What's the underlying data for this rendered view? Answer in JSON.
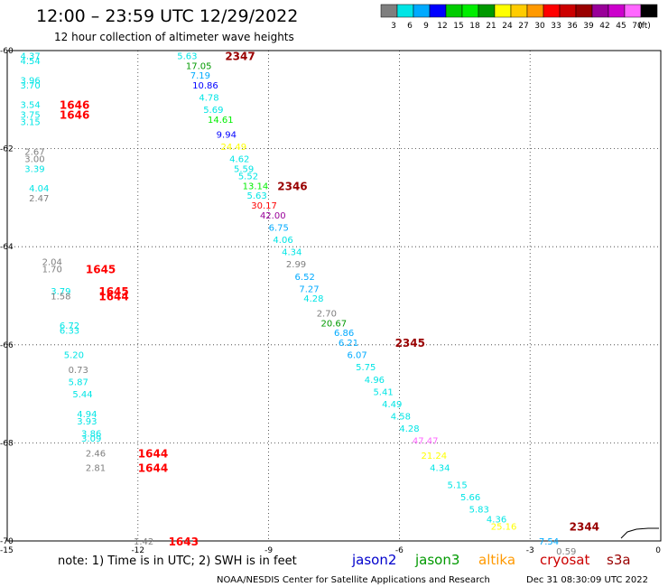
{
  "header": {
    "title": "12:00 – 23:59 UTC 12/29/2022",
    "subtitle": "12 hour collection of altimeter wave heights"
  },
  "colorbar": {
    "colors": [
      "#7f7f7f",
      "#00e5e5",
      "#00aaff",
      "#0000ff",
      "#00cc00",
      "#00ee00",
      "#009900",
      "#ffff00",
      "#ffcc00",
      "#ff9900",
      "#ff0000",
      "#cc0000",
      "#990000",
      "#990099",
      "#cc00cc",
      "#ff66ff",
      "#000000"
    ],
    "labels": [
      "3",
      "6",
      "9",
      "12",
      "15",
      "18",
      "21",
      "24",
      "27",
      "30",
      "33",
      "36",
      "39",
      "42",
      "45",
      "70",
      "(ft)"
    ]
  },
  "chart_data": {
    "type": "scatter",
    "title": "12:00 – 23:59 UTC 12/29/2022",
    "subtitle": "12 hour collection of altimeter wave heights",
    "xlim": [
      -15,
      0
    ],
    "ylim": [
      -70,
      -60
    ],
    "x_ticks": [
      "-15",
      "-12",
      "-9",
      "-6",
      "-3",
      "0"
    ],
    "y_ticks": [
      "-60",
      "-62",
      "-64",
      "-66",
      "-68",
      "-70"
    ],
    "grid": true,
    "points": [
      {
        "x": -14.7,
        "y": -60.1,
        "label": "4.37",
        "color": "#00e5e5"
      },
      {
        "x": -14.7,
        "y": -60.2,
        "label": "4.54",
        "color": "#00e5e5"
      },
      {
        "x": -14.7,
        "y": -60.6,
        "label": "3.96",
        "color": "#00e5e5"
      },
      {
        "x": -14.7,
        "y": -60.7,
        "label": "3.70",
        "color": "#00e5e5"
      },
      {
        "x": -14.7,
        "y": -61.1,
        "label": "3.54",
        "color": "#00e5e5"
      },
      {
        "x": -14.7,
        "y": -61.3,
        "label": "3.75",
        "color": "#00e5e5"
      },
      {
        "x": -14.7,
        "y": -61.45,
        "label": "3.15",
        "color": "#00e5e5"
      },
      {
        "x": -14.6,
        "y": -62.05,
        "label": "2.67",
        "color": "#7f7f7f"
      },
      {
        "x": -14.6,
        "y": -62.2,
        "label": "3.00",
        "color": "#7f7f7f"
      },
      {
        "x": -14.6,
        "y": -62.4,
        "label": "3.39",
        "color": "#00e5e5"
      },
      {
        "x": -14.5,
        "y": -62.8,
        "label": "4.04",
        "color": "#00e5e5"
      },
      {
        "x": -14.5,
        "y": -63.0,
        "label": "2.47",
        "color": "#7f7f7f"
      },
      {
        "x": -14.2,
        "y": -64.3,
        "label": "2.04",
        "color": "#7f7f7f"
      },
      {
        "x": -14.2,
        "y": -64.45,
        "label": "1.70",
        "color": "#7f7f7f"
      },
      {
        "x": -14.0,
        "y": -64.9,
        "label": "3.79",
        "color": "#00e5e5"
      },
      {
        "x": -14.0,
        "y": -65.0,
        "label": "1.58",
        "color": "#7f7f7f"
      },
      {
        "x": -13.8,
        "y": -65.6,
        "label": "6.72",
        "color": "#00e5e5"
      },
      {
        "x": -13.8,
        "y": -65.7,
        "label": "6.33",
        "color": "#00e5e5"
      },
      {
        "x": -13.7,
        "y": -66.2,
        "label": "5.20",
        "color": "#00e5e5"
      },
      {
        "x": -13.6,
        "y": -66.5,
        "label": "0.73",
        "color": "#7f7f7f"
      },
      {
        "x": -13.6,
        "y": -66.75,
        "label": "5.87",
        "color": "#00e5e5"
      },
      {
        "x": -13.5,
        "y": -67.0,
        "label": "5.44",
        "color": "#00e5e5"
      },
      {
        "x": -13.4,
        "y": -67.4,
        "label": "4.94",
        "color": "#00e5e5"
      },
      {
        "x": -13.4,
        "y": -67.55,
        "label": "3.93",
        "color": "#00e5e5"
      },
      {
        "x": -13.3,
        "y": -67.8,
        "label": "3.86",
        "color": "#00e5e5"
      },
      {
        "x": -13.3,
        "y": -67.9,
        "label": "3.09",
        "color": "#00e5e5"
      },
      {
        "x": -13.2,
        "y": -68.2,
        "label": "2.46",
        "color": "#7f7f7f"
      },
      {
        "x": -13.2,
        "y": -68.5,
        "label": "2.81",
        "color": "#7f7f7f"
      },
      {
        "x": -12.1,
        "y": -70.0,
        "label": "1.42",
        "color": "#7f7f7f"
      },
      {
        "x": -11.1,
        "y": -60.1,
        "label": "5.63",
        "color": "#00e5e5"
      },
      {
        "x": -10.9,
        "y": -60.3,
        "label": "17.05",
        "color": "#009900"
      },
      {
        "x": -10.8,
        "y": -60.5,
        "label": "7.19",
        "color": "#00aaff"
      },
      {
        "x": -10.75,
        "y": -60.7,
        "label": "10.86",
        "color": "#0000ff"
      },
      {
        "x": -10.6,
        "y": -60.95,
        "label": "4.78",
        "color": "#00e5e5"
      },
      {
        "x": -10.5,
        "y": -61.2,
        "label": "5.69",
        "color": "#00e5e5"
      },
      {
        "x": -10.4,
        "y": -61.4,
        "label": "14.61",
        "color": "#00ee00"
      },
      {
        "x": -10.2,
        "y": -61.7,
        "label": "9.94",
        "color": "#0000ff"
      },
      {
        "x": -10.1,
        "y": -61.95,
        "label": "24.49",
        "color": "#ffff00"
      },
      {
        "x": -9.9,
        "y": -62.2,
        "label": "4.62",
        "color": "#00e5e5"
      },
      {
        "x": -9.8,
        "y": -62.4,
        "label": "5.59",
        "color": "#00e5e5"
      },
      {
        "x": -9.7,
        "y": -62.55,
        "label": "5.52",
        "color": "#00e5e5"
      },
      {
        "x": -9.6,
        "y": -62.75,
        "label": "13.14",
        "color": "#00ee00"
      },
      {
        "x": -9.5,
        "y": -62.95,
        "label": "5.63",
        "color": "#00e5e5"
      },
      {
        "x": -9.4,
        "y": -63.15,
        "label": "30.17",
        "color": "#ff0000"
      },
      {
        "x": -9.2,
        "y": -63.35,
        "label": "42.00",
        "color": "#990099"
      },
      {
        "x": -9.0,
        "y": -63.6,
        "label": "6.75",
        "color": "#00aaff"
      },
      {
        "x": -8.9,
        "y": -63.85,
        "label": "4.06",
        "color": "#00e5e5"
      },
      {
        "x": -8.7,
        "y": -64.1,
        "label": "4.34",
        "color": "#00e5e5"
      },
      {
        "x": -8.6,
        "y": -64.35,
        "label": "2.99",
        "color": "#7f7f7f"
      },
      {
        "x": -8.4,
        "y": -64.6,
        "label": "6.52",
        "color": "#00aaff"
      },
      {
        "x": -8.3,
        "y": -64.85,
        "label": "7.27",
        "color": "#00aaff"
      },
      {
        "x": -8.2,
        "y": -65.05,
        "label": "4.28",
        "color": "#00e5e5"
      },
      {
        "x": -7.9,
        "y": -65.35,
        "label": "2.70",
        "color": "#7f7f7f"
      },
      {
        "x": -7.8,
        "y": -65.55,
        "label": "20.67",
        "color": "#009900"
      },
      {
        "x": -7.5,
        "y": -65.75,
        "label": "6.86",
        "color": "#00aaff"
      },
      {
        "x": -7.4,
        "y": -65.95,
        "label": "6.21",
        "color": "#00aaff"
      },
      {
        "x": -7.2,
        "y": -66.2,
        "label": "6.07",
        "color": "#00aaff"
      },
      {
        "x": -7.0,
        "y": -66.45,
        "label": "5.75",
        "color": "#00e5e5"
      },
      {
        "x": -6.8,
        "y": -66.7,
        "label": "4.96",
        "color": "#00e5e5"
      },
      {
        "x": -6.6,
        "y": -66.95,
        "label": "5.41",
        "color": "#00e5e5"
      },
      {
        "x": -6.4,
        "y": -67.2,
        "label": "4.49",
        "color": "#00e5e5"
      },
      {
        "x": -6.2,
        "y": -67.45,
        "label": "4.58",
        "color": "#00e5e5"
      },
      {
        "x": -6.0,
        "y": -67.7,
        "label": "4.28",
        "color": "#00e5e5"
      },
      {
        "x": -5.7,
        "y": -67.95,
        "label": "47.47",
        "color": "#ff66ff"
      },
      {
        "x": -5.5,
        "y": -68.25,
        "label": "21.24",
        "color": "#ffff00"
      },
      {
        "x": -5.3,
        "y": -68.5,
        "label": "4.34",
        "color": "#00e5e5"
      },
      {
        "x": -4.9,
        "y": -68.85,
        "label": "5.15",
        "color": "#00e5e5"
      },
      {
        "x": -4.6,
        "y": -69.1,
        "label": "5.66",
        "color": "#00e5e5"
      },
      {
        "x": -4.4,
        "y": -69.35,
        "label": "5.83",
        "color": "#00e5e5"
      },
      {
        "x": -4.0,
        "y": -69.55,
        "label": "4.36",
        "color": "#00e5e5"
      },
      {
        "x": -3.9,
        "y": -69.7,
        "label": "25.16",
        "color": "#ffff00"
      },
      {
        "x": -2.8,
        "y": -70.0,
        "label": "7.54",
        "color": "#00aaff"
      },
      {
        "x": -2.4,
        "y": -70.2,
        "label": "0.59",
        "color": "#7f7f7f"
      }
    ],
    "time_labels": [
      {
        "x": -10.0,
        "y": -60.1,
        "label": "2347",
        "color": "#990000"
      },
      {
        "x": -13.8,
        "y": -61.1,
        "label": "1646",
        "color": "#ff0000"
      },
      {
        "x": -13.8,
        "y": -61.3,
        "label": "1646",
        "color": "#ff0000"
      },
      {
        "x": -8.8,
        "y": -62.75,
        "label": "2346",
        "color": "#990000"
      },
      {
        "x": -13.2,
        "y": -64.45,
        "label": "1645",
        "color": "#ff0000"
      },
      {
        "x": -12.9,
        "y": -64.9,
        "label": "1645",
        "color": "#ff0000"
      },
      {
        "x": -12.9,
        "y": -65.0,
        "label": "1644",
        "color": "#ff0000"
      },
      {
        "x": -6.1,
        "y": -65.95,
        "label": "2345",
        "color": "#990000"
      },
      {
        "x": -12.0,
        "y": -68.2,
        "label": "1644",
        "color": "#ff0000"
      },
      {
        "x": -12.0,
        "y": -68.5,
        "label": "1644",
        "color": "#ff0000"
      },
      {
        "x": -11.3,
        "y": -70.0,
        "label": "1643",
        "color": "#ff0000"
      },
      {
        "x": -2.1,
        "y": -69.7,
        "label": "2344",
        "color": "#990000"
      }
    ]
  },
  "footer": {
    "note": "note: 1) Time is in UTC; 2) SWH is in feet",
    "satellites": [
      {
        "name": "jason2",
        "color": "#0000cc"
      },
      {
        "name": "jason3",
        "color": "#009900"
      },
      {
        "name": "altika",
        "color": "#ff9900"
      },
      {
        "name": "cryosat",
        "color": "#cc0000"
      },
      {
        "name": "s3a",
        "color": "#990000"
      }
    ],
    "credit": "NOAA/NESDIS Center for Satellite Applications and Research",
    "timestamp": "Dec 31 08:30:09 UTC 2022"
  }
}
